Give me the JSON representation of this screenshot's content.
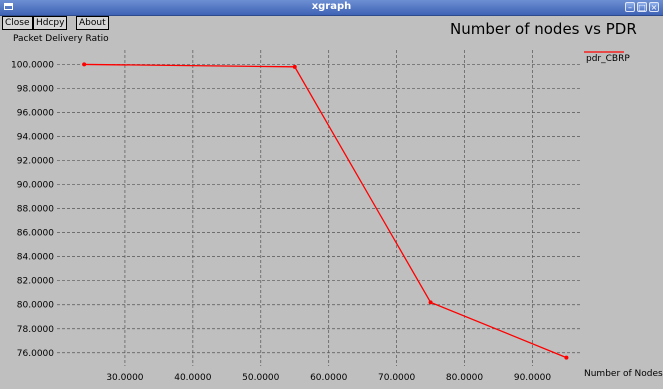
{
  "window": {
    "title": "xgraph"
  },
  "toolbar": {
    "close_label": "Close",
    "hdcpy_label": "Hdcpy",
    "about_label": "About"
  },
  "chart_data": {
    "type": "line",
    "title": "Number of nodes vs PDR",
    "xlabel": "Number of Nodes",
    "ylabel": "Packet Delivery Ratio",
    "xlim": [
      20.0,
      97.0
    ],
    "ylim": [
      74.9,
      101.2
    ],
    "x_ticks": [
      "30.0000",
      "40.0000",
      "50.0000",
      "60.0000",
      "70.0000",
      "80.0000",
      "90.0000"
    ],
    "x_tick_values": [
      30,
      40,
      50,
      60,
      70,
      80,
      90
    ],
    "y_ticks": [
      "100.0000",
      "98.0000",
      "96.0000",
      "94.0000",
      "92.0000",
      "90.0000",
      "88.0000",
      "86.0000",
      "84.0000",
      "82.0000",
      "80.0000",
      "78.0000",
      "76.0000"
    ],
    "y_tick_values": [
      100,
      98,
      96,
      94,
      92,
      90,
      88,
      86,
      84,
      82,
      80,
      78,
      76
    ],
    "grid": true,
    "legend_position": "top-right",
    "series": [
      {
        "name": "pdr_CBRP",
        "color": "#ff0000",
        "x": [
          24,
          55,
          75,
          95
        ],
        "y": [
          100.0,
          99.8,
          80.2,
          75.6
        ]
      }
    ]
  }
}
